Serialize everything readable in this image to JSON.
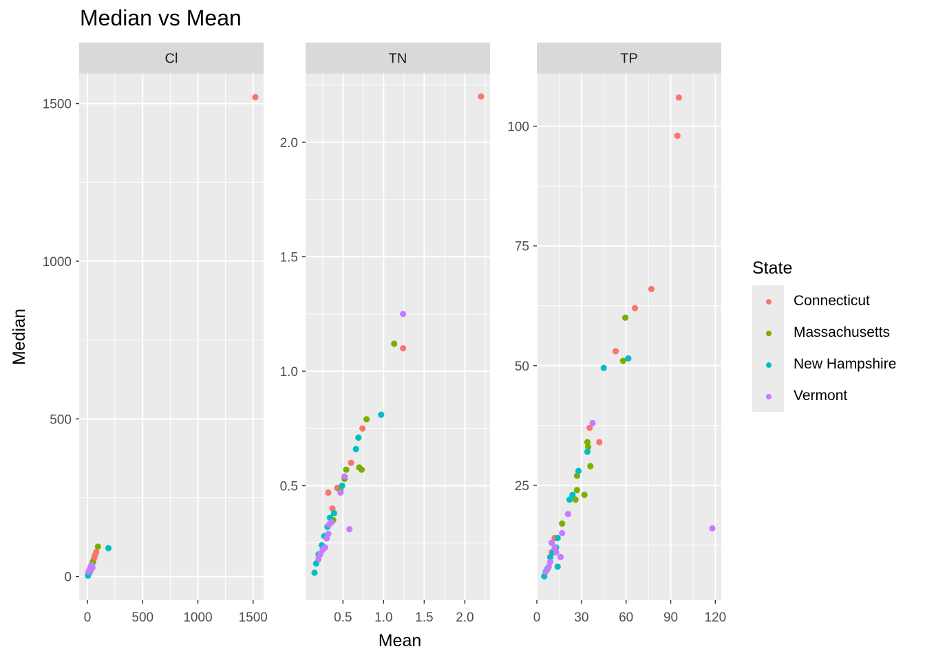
{
  "chart_data": {
    "type": "scatter",
    "title": "Median vs Mean",
    "xlabel": "Mean",
    "ylabel": "Median",
    "grid": true,
    "legend": {
      "title": "State",
      "placement": "right",
      "entries": [
        {
          "name": "Connecticut",
          "color": "#F8766D"
        },
        {
          "name": "Massachusetts",
          "color": "#7CAE00"
        },
        {
          "name": "New Hampshire",
          "color": "#00BFC4"
        },
        {
          "name": "Vermont",
          "color": "#C77CFF"
        }
      ]
    },
    "facets": [
      {
        "label": "Cl",
        "xlim": [
          -75,
          1595
        ],
        "ylim": [
          -75,
          1595
        ],
        "xticks": [
          0,
          500,
          1000,
          1500
        ],
        "xtick_labels": [
          "0",
          "500",
          "1000",
          "1500"
        ],
        "yticks": [
          0,
          500,
          1000,
          1500
        ],
        "ytick_labels": [
          "0",
          "500",
          "1000",
          "1500"
        ],
        "points": [
          {
            "state": "Connecticut",
            "x": 1520,
            "y": 1520
          },
          {
            "state": "Connecticut",
            "x": 80,
            "y": 78
          },
          {
            "state": "Connecticut",
            "x": 70,
            "y": 68
          },
          {
            "state": "Connecticut",
            "x": 60,
            "y": 58
          },
          {
            "state": "Connecticut",
            "x": 50,
            "y": 48
          },
          {
            "state": "Connecticut",
            "x": 35,
            "y": 30
          },
          {
            "state": "Massachusetts",
            "x": 95,
            "y": 95
          },
          {
            "state": "Massachusetts",
            "x": 50,
            "y": 45
          },
          {
            "state": "Massachusetts",
            "x": 40,
            "y": 38
          },
          {
            "state": "Massachusetts",
            "x": 30,
            "y": 25
          },
          {
            "state": "Massachusetts",
            "x": 20,
            "y": 15
          },
          {
            "state": "New Hampshire",
            "x": 190,
            "y": 90
          },
          {
            "state": "New Hampshire",
            "x": 10,
            "y": 8
          },
          {
            "state": "New Hampshire",
            "x": 5,
            "y": 3
          },
          {
            "state": "New Hampshire",
            "x": 15,
            "y": 12
          },
          {
            "state": "New Hampshire",
            "x": 25,
            "y": 20
          },
          {
            "state": "Vermont",
            "x": 15,
            "y": 18
          },
          {
            "state": "Vermont",
            "x": 25,
            "y": 25
          },
          {
            "state": "Vermont",
            "x": 30,
            "y": 32
          },
          {
            "state": "Vermont",
            "x": 40,
            "y": 35
          },
          {
            "state": "Vermont",
            "x": 45,
            "y": 28
          },
          {
            "state": "Vermont",
            "x": 20,
            "y": 22
          },
          {
            "state": "Vermont",
            "x": 10,
            "y": 15
          }
        ]
      },
      {
        "label": "TN",
        "xlim": [
          0.04,
          2.31
        ],
        "ylim": [
          0.0,
          2.3
        ],
        "xticks": [
          0.5,
          1.0,
          1.5,
          2.0
        ],
        "xtick_labels": [
          "0.5",
          "1.0",
          "1.5",
          "2.0"
        ],
        "yticks": [
          0.5,
          1.0,
          1.5,
          2.0
        ],
        "ytick_labels": [
          "0.5",
          "1.0",
          "1.5",
          "2.0"
        ],
        "points": [
          {
            "state": "Connecticut",
            "x": 2.2,
            "y": 2.2
          },
          {
            "state": "Connecticut",
            "x": 1.24,
            "y": 1.1
          },
          {
            "state": "Connecticut",
            "x": 0.74,
            "y": 0.75
          },
          {
            "state": "Connecticut",
            "x": 0.6,
            "y": 0.6
          },
          {
            "state": "Connecticut",
            "x": 0.43,
            "y": 0.49
          },
          {
            "state": "Connecticut",
            "x": 0.32,
            "y": 0.47
          },
          {
            "state": "Connecticut",
            "x": 0.37,
            "y": 0.4
          },
          {
            "state": "Massachusetts",
            "x": 1.13,
            "y": 1.12
          },
          {
            "state": "Massachusetts",
            "x": 0.79,
            "y": 0.79
          },
          {
            "state": "Massachusetts",
            "x": 0.7,
            "y": 0.58
          },
          {
            "state": "Massachusetts",
            "x": 0.73,
            "y": 0.57
          },
          {
            "state": "Massachusetts",
            "x": 0.54,
            "y": 0.57
          },
          {
            "state": "Massachusetts",
            "x": 0.52,
            "y": 0.53
          },
          {
            "state": "Massachusetts",
            "x": 0.47,
            "y": 0.48
          },
          {
            "state": "Massachusetts",
            "x": 0.38,
            "y": 0.35
          },
          {
            "state": "New Hampshire",
            "x": 0.97,
            "y": 0.81
          },
          {
            "state": "New Hampshire",
            "x": 0.69,
            "y": 0.71
          },
          {
            "state": "New Hampshire",
            "x": 0.66,
            "y": 0.66
          },
          {
            "state": "New Hampshire",
            "x": 0.49,
            "y": 0.5
          },
          {
            "state": "New Hampshire",
            "x": 0.39,
            "y": 0.38
          },
          {
            "state": "New Hampshire",
            "x": 0.34,
            "y": 0.36
          },
          {
            "state": "New Hampshire",
            "x": 0.31,
            "y": 0.32
          },
          {
            "state": "New Hampshire",
            "x": 0.27,
            "y": 0.28
          },
          {
            "state": "New Hampshire",
            "x": 0.24,
            "y": 0.24
          },
          {
            "state": "New Hampshire",
            "x": 0.2,
            "y": 0.2
          },
          {
            "state": "New Hampshire",
            "x": 0.17,
            "y": 0.16
          },
          {
            "state": "New Hampshire",
            "x": 0.15,
            "y": 0.12
          },
          {
            "state": "Vermont",
            "x": 1.24,
            "y": 1.25
          },
          {
            "state": "Vermont",
            "x": 0.58,
            "y": 0.31
          },
          {
            "state": "Vermont",
            "x": 0.52,
            "y": 0.54
          },
          {
            "state": "Vermont",
            "x": 0.47,
            "y": 0.47
          },
          {
            "state": "Vermont",
            "x": 0.36,
            "y": 0.34
          },
          {
            "state": "Vermont",
            "x": 0.33,
            "y": 0.33
          },
          {
            "state": "Vermont",
            "x": 0.32,
            "y": 0.29
          },
          {
            "state": "Vermont",
            "x": 0.3,
            "y": 0.27
          },
          {
            "state": "Vermont",
            "x": 0.28,
            "y": 0.23
          },
          {
            "state": "Vermont",
            "x": 0.25,
            "y": 0.22
          },
          {
            "state": "Vermont",
            "x": 0.22,
            "y": 0.2
          },
          {
            "state": "Vermont",
            "x": 0.2,
            "y": 0.18
          }
        ]
      },
      {
        "label": "TP",
        "xlim": [
          0,
          124
        ],
        "ylim": [
          1,
          111
        ],
        "xticks": [
          0,
          30,
          60,
          90,
          120
        ],
        "xtick_labels": [
          "0",
          "30",
          "60",
          "90",
          "120"
        ],
        "yticks": [
          25,
          50,
          75,
          100
        ],
        "ytick_labels": [
          "25",
          "50",
          "75",
          "100"
        ],
        "points": [
          {
            "state": "Connecticut",
            "x": 95.5,
            "y": 106
          },
          {
            "state": "Connecticut",
            "x": 94.5,
            "y": 98
          },
          {
            "state": "Connecticut",
            "x": 77,
            "y": 66
          },
          {
            "state": "Connecticut",
            "x": 66,
            "y": 62
          },
          {
            "state": "Connecticut",
            "x": 53,
            "y": 53
          },
          {
            "state": "Connecticut",
            "x": 35.5,
            "y": 37
          },
          {
            "state": "Connecticut",
            "x": 42,
            "y": 34
          },
          {
            "state": "Connecticut",
            "x": 12,
            "y": 14
          },
          {
            "state": "Connecticut",
            "x": 10,
            "y": 11
          },
          {
            "state": "Massachusetts",
            "x": 59.5,
            "y": 60
          },
          {
            "state": "Massachusetts",
            "x": 58,
            "y": 51
          },
          {
            "state": "Massachusetts",
            "x": 34,
            "y": 34
          },
          {
            "state": "Massachusetts",
            "x": 34.5,
            "y": 33
          },
          {
            "state": "Massachusetts",
            "x": 36,
            "y": 29
          },
          {
            "state": "Massachusetts",
            "x": 27,
            "y": 27
          },
          {
            "state": "Massachusetts",
            "x": 27,
            "y": 24
          },
          {
            "state": "Massachusetts",
            "x": 32,
            "y": 23
          },
          {
            "state": "Massachusetts",
            "x": 26,
            "y": 22
          },
          {
            "state": "Massachusetts",
            "x": 17,
            "y": 17
          },
          {
            "state": "New Hampshire",
            "x": 61.5,
            "y": 51.5
          },
          {
            "state": "New Hampshire",
            "x": 45,
            "y": 49.5
          },
          {
            "state": "New Hampshire",
            "x": 34,
            "y": 32
          },
          {
            "state": "New Hampshire",
            "x": 28,
            "y": 28
          },
          {
            "state": "New Hampshire",
            "x": 24,
            "y": 23
          },
          {
            "state": "New Hampshire",
            "x": 22,
            "y": 22
          },
          {
            "state": "New Hampshire",
            "x": 14,
            "y": 14
          },
          {
            "state": "New Hampshire",
            "x": 13,
            "y": 12
          },
          {
            "state": "New Hampshire",
            "x": 11,
            "y": 11
          },
          {
            "state": "New Hampshire",
            "x": 9,
            "y": 10
          },
          {
            "state": "New Hampshire",
            "x": 14,
            "y": 8
          },
          {
            "state": "New Hampshire",
            "x": 5,
            "y": 6
          },
          {
            "state": "New Hampshire",
            "x": 7,
            "y": 7.5
          },
          {
            "state": "Vermont",
            "x": 37.5,
            "y": 38
          },
          {
            "state": "Vermont",
            "x": 21,
            "y": 19
          },
          {
            "state": "Vermont",
            "x": 17,
            "y": 15
          },
          {
            "state": "Vermont",
            "x": 10,
            "y": 13
          },
          {
            "state": "Vermont",
            "x": 12,
            "y": 12
          },
          {
            "state": "Vermont",
            "x": 13,
            "y": 11
          },
          {
            "state": "Vermont",
            "x": 16,
            "y": 10
          },
          {
            "state": "Vermont",
            "x": 9,
            "y": 9
          },
          {
            "state": "Vermont",
            "x": 8,
            "y": 8
          },
          {
            "state": "Vermont",
            "x": 6,
            "y": 7
          },
          {
            "state": "Vermont",
            "x": 118,
            "y": 16
          }
        ]
      }
    ]
  }
}
